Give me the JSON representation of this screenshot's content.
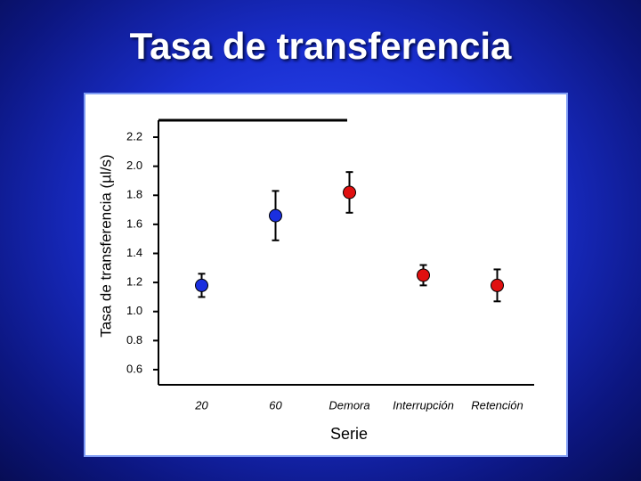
{
  "chart_data": {
    "type": "scatter",
    "title": "Tasa de transferencia",
    "y_label": "Tasa de transferencia (µl/s)",
    "x_label": "Serie",
    "categories": [
      "20",
      "60",
      "Demora",
      "Interrupción",
      "Retención"
    ],
    "values": [
      1.18,
      1.66,
      1.82,
      1.25,
      1.18
    ],
    "errors": [
      0.08,
      0.17,
      0.14,
      0.07,
      0.11
    ],
    "colors": [
      "#1a2fe0",
      "#1a2fe0",
      "#e01010",
      "#e01010",
      "#e01010"
    ],
    "ylim": [
      0.5,
      2.3
    ],
    "yticks": [
      {
        "value": 0.6,
        "label": "0.6"
      },
      {
        "value": 0.8,
        "label": "0.8"
      },
      {
        "value": 1.0,
        "label": "1.0"
      },
      {
        "value": 1.2,
        "label": "1.2"
      },
      {
        "value": 1.4,
        "label": "1.4"
      },
      {
        "value": 1.6,
        "label": "1.6"
      },
      {
        "value": 1.8,
        "label": "1.8"
      },
      {
        "value": 2.0,
        "label": "2.0"
      },
      {
        "value": 2.2,
        "label": "2.2"
      }
    ]
  }
}
